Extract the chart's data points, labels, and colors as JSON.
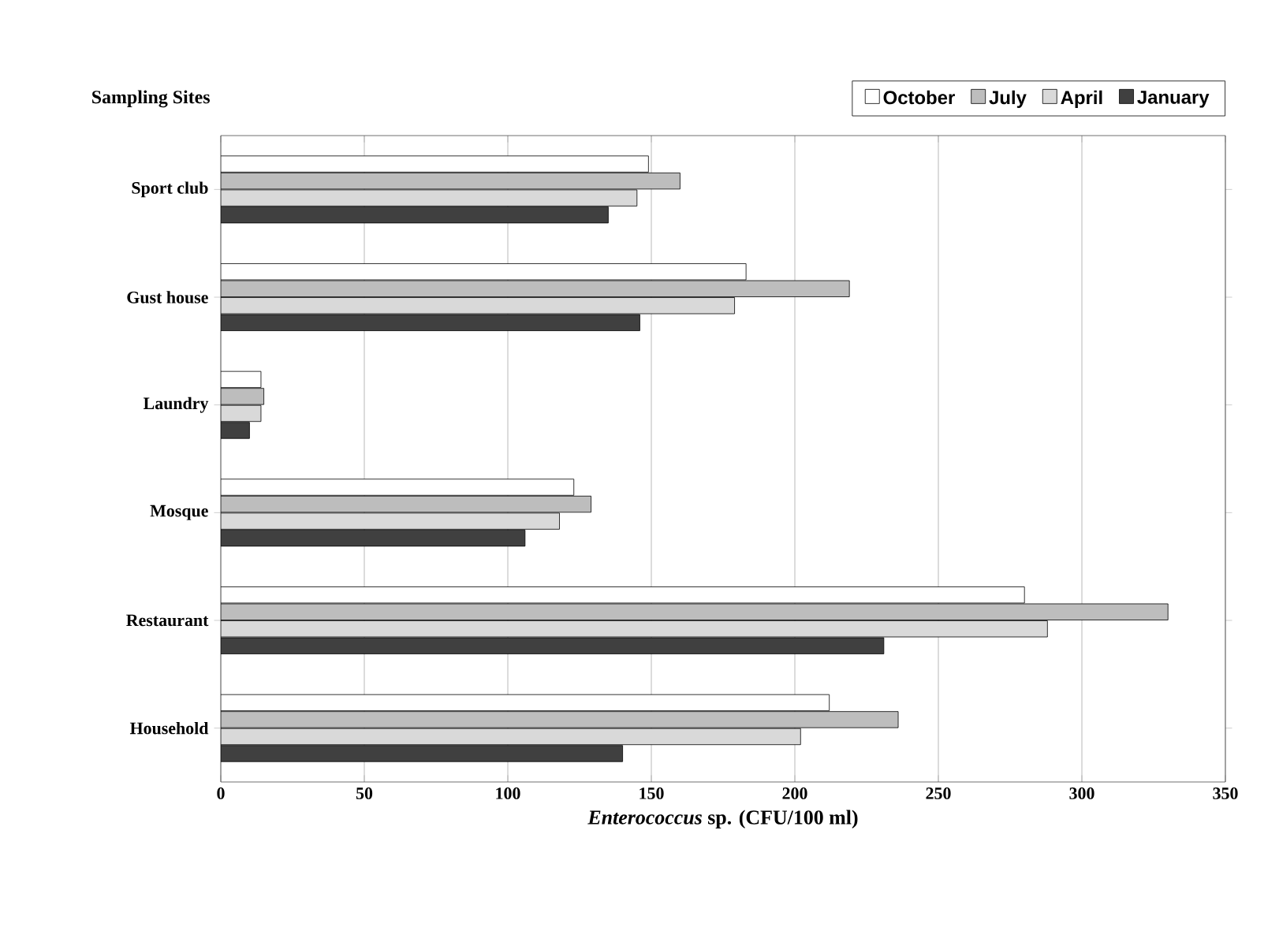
{
  "chart_data": {
    "type": "bar",
    "orientation": "horizontal",
    "ylabel": "Sampling Sites",
    "xlabel": "*Enterococcus* sp. (CFU/100 ml)",
    "categories": [
      "Sport club",
      "Gust house",
      "Laundry",
      "Mosque",
      "Restaurant",
      "Household"
    ],
    "series": [
      {
        "name": "October",
        "color": "#ffffff",
        "values": [
          149,
          183,
          14,
          123,
          280,
          212
        ]
      },
      {
        "name": "July",
        "color": "#bdbdbd",
        "values": [
          160,
          219,
          15,
          129,
          330,
          236
        ]
      },
      {
        "name": "April",
        "color": "#d9d9d9",
        "values": [
          145,
          179,
          14,
          118,
          288,
          202
        ]
      },
      {
        "name": "January",
        "color": "#404040",
        "values": [
          135,
          146,
          10,
          106,
          231,
          140
        ]
      }
    ],
    "xlim": [
      0,
      350
    ],
    "xticks": [
      0,
      50,
      100,
      150,
      200,
      250,
      300,
      350
    ],
    "grid": "x",
    "legend": "top right"
  }
}
